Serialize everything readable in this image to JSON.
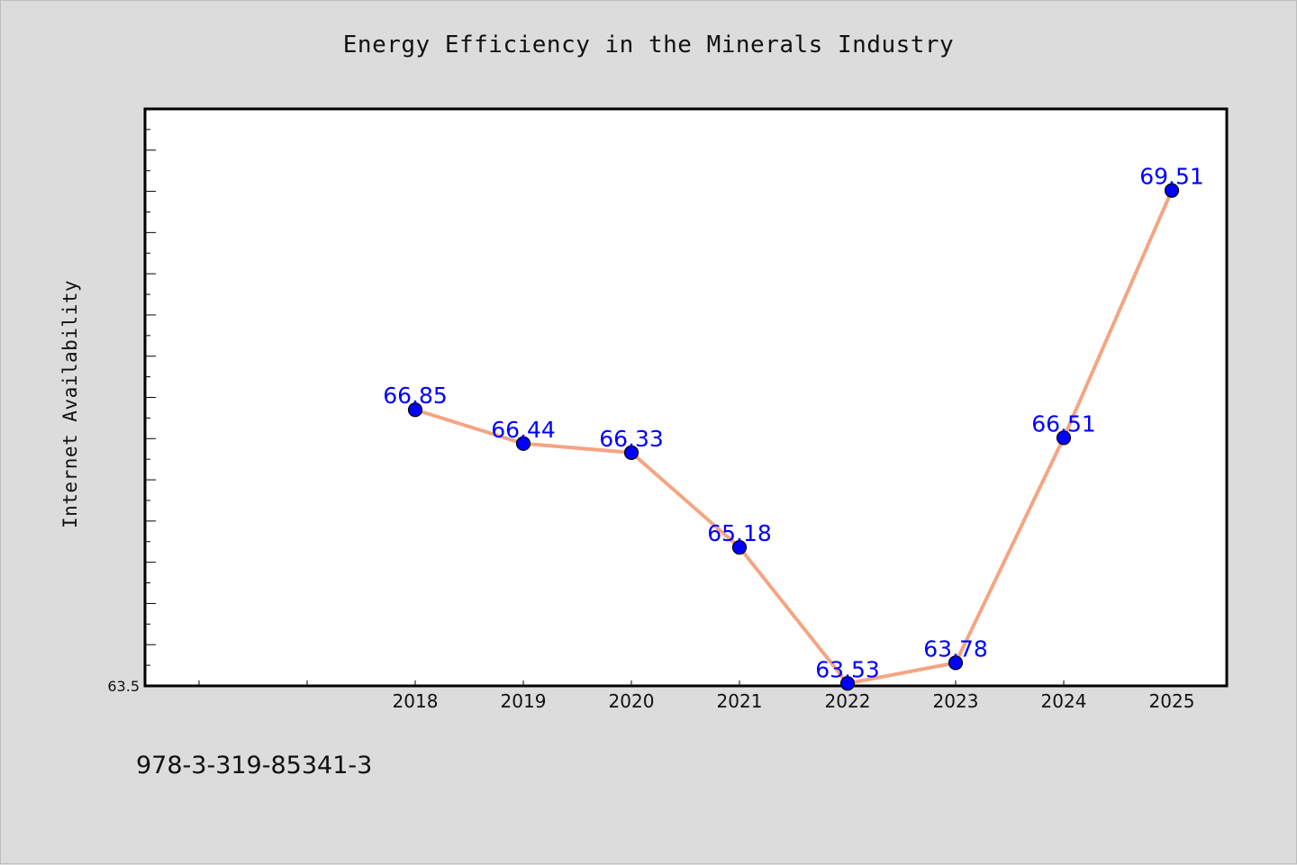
{
  "chart_data": {
    "type": "line",
    "title": "Energy Efficiency in the Minerals Industry",
    "xlabel": "",
    "ylabel": "Internet Availability",
    "categories": [
      "2018",
      "2019",
      "2020",
      "2021",
      "2022",
      "2023",
      "2024",
      "2025"
    ],
    "series": [
      {
        "values": [
          66.85,
          66.44,
          66.33,
          65.18,
          63.53,
          63.78,
          66.51,
          69.51
        ]
      }
    ],
    "data_labels": [
      "66.85",
      "66.44",
      "66.33",
      "65.18",
      "63.53",
      "63.78",
      "66.51",
      "69.51"
    ],
    "y_tick_labels": [
      "63.5"
    ],
    "ylim": [
      63.5,
      70.5
    ],
    "grid": false,
    "line_color": "#f4a582",
    "marker_color": "#0000ff",
    "label_color": "#0000ff"
  },
  "footer": {
    "code": "978-3-319-85341-3"
  }
}
